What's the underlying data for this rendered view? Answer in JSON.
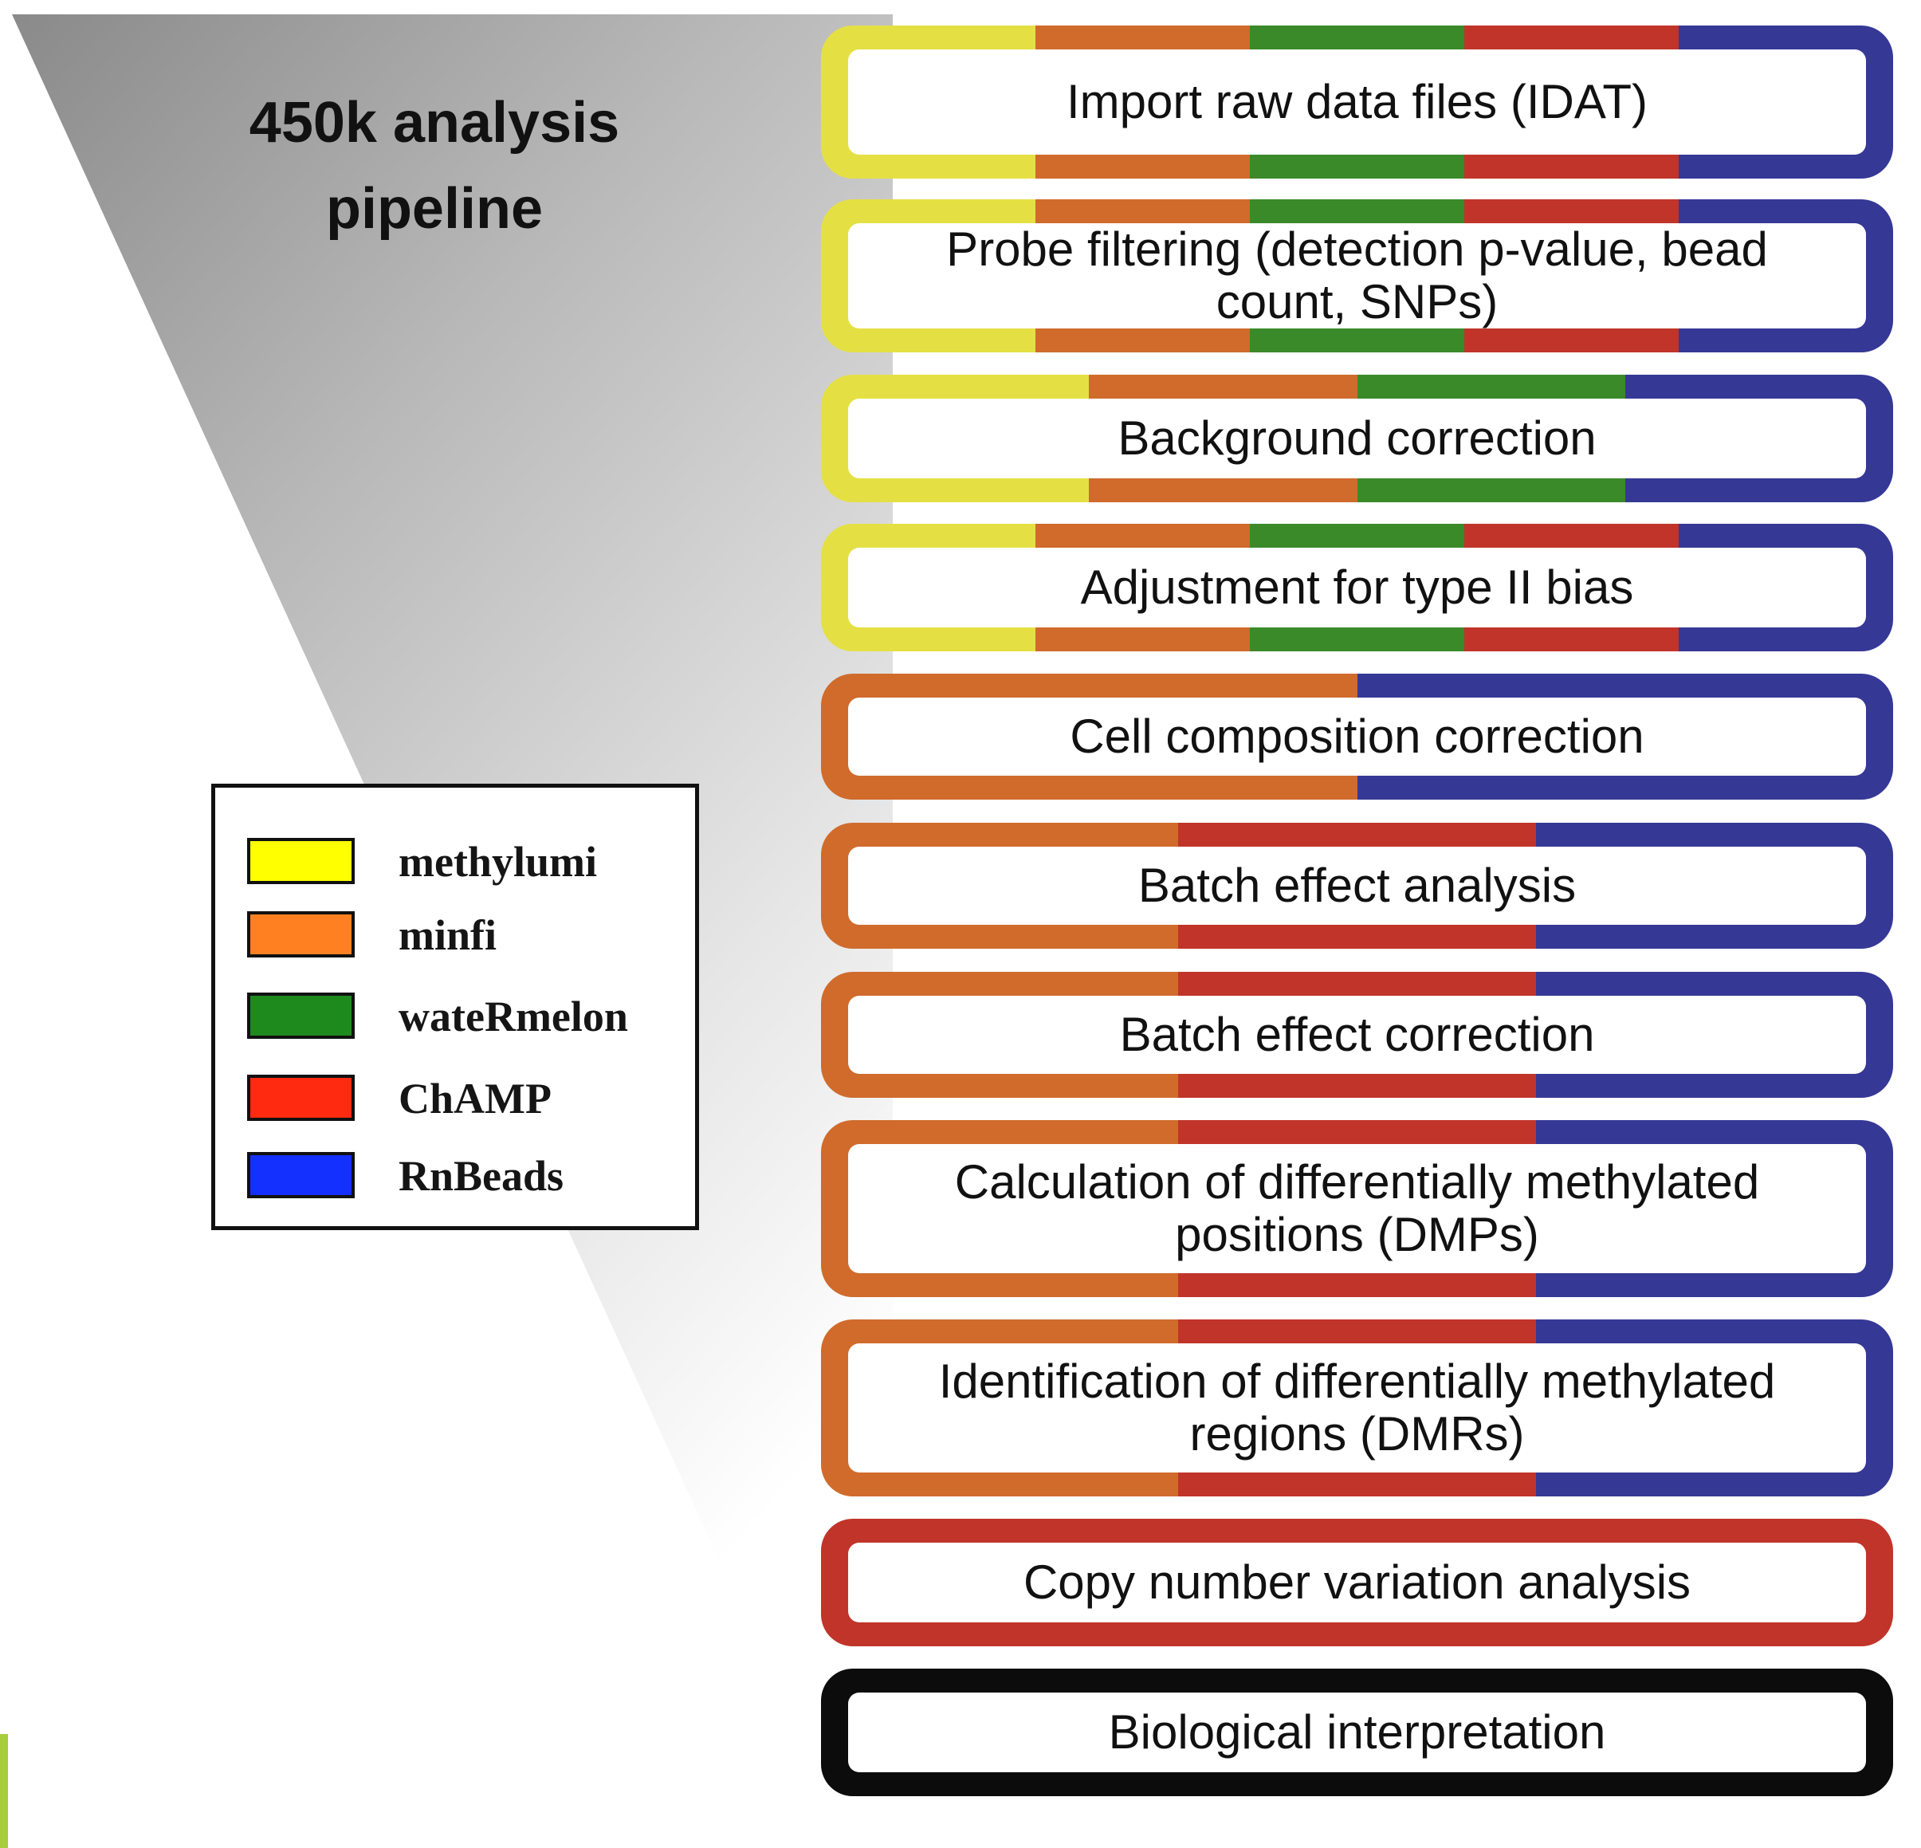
{
  "title": {
    "line1": "450k analysis",
    "line2": "pipeline"
  },
  "colors": {
    "methylumi": "#e4e044",
    "minfi": "#d06b2c",
    "wateRmelon": "#3a8a2a",
    "ChAMP": "#c1342a",
    "RnBeads": "#363896",
    "black": "#0c0c0c"
  },
  "legend": [
    {
      "label": "methylumi",
      "color": "#ffff00"
    },
    {
      "label": "minfi",
      "color": "#ff8020"
    },
    {
      "label": "wateRmelon",
      "color": "#1e8a1e"
    },
    {
      "label": "ChAMP",
      "color": "#ff2a10"
    },
    {
      "label": "RnBeads",
      "color": "#1430ff"
    }
  ],
  "steps": [
    {
      "label": "Import raw data files (IDAT)",
      "packages": [
        "methylumi",
        "minfi",
        "wateRmelon",
        "ChAMP",
        "RnBeads"
      ]
    },
    {
      "label": "Probe filtering (detection p-value, bead count, SNPs)",
      "packages": [
        "methylumi",
        "minfi",
        "wateRmelon",
        "ChAMP",
        "RnBeads"
      ]
    },
    {
      "label": "Background correction",
      "packages": [
        "methylumi",
        "minfi",
        "wateRmelon",
        "RnBeads"
      ]
    },
    {
      "label": "Adjustment for type II bias",
      "packages": [
        "methylumi",
        "minfi",
        "wateRmelon",
        "ChAMP",
        "RnBeads"
      ]
    },
    {
      "label": "Cell composition correction",
      "packages": [
        "minfi",
        "RnBeads"
      ]
    },
    {
      "label": "Batch effect analysis",
      "packages": [
        "minfi",
        "ChAMP",
        "RnBeads"
      ]
    },
    {
      "label": "Batch effect correction",
      "packages": [
        "minfi",
        "ChAMP",
        "RnBeads"
      ]
    },
    {
      "label": "Calculation of differentially methylated positions (DMPs)",
      "packages": [
        "minfi",
        "ChAMP",
        "RnBeads"
      ]
    },
    {
      "label": "Identification of differentially methylated regions (DMRs)",
      "packages": [
        "minfi",
        "ChAMP",
        "RnBeads"
      ]
    },
    {
      "label": "Copy number variation analysis",
      "packages": [
        "ChAMP"
      ]
    },
    {
      "label": "Biological interpretation",
      "packages": [
        "black"
      ]
    }
  ]
}
